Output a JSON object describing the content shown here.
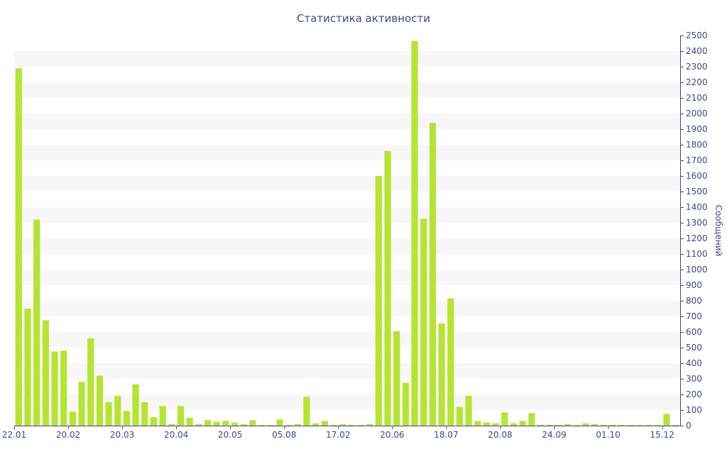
{
  "chart_data": {
    "type": "bar",
    "title": "Статистика активности",
    "ylabel": "Сообщений",
    "ylim": [
      0,
      2500
    ],
    "y_ticks": [
      0,
      100,
      200,
      300,
      400,
      500,
      600,
      700,
      800,
      900,
      1000,
      1100,
      1200,
      1300,
      1400,
      1500,
      1600,
      1700,
      1800,
      1900,
      2000,
      2100,
      2200,
      2300,
      2400,
      2500
    ],
    "y_axis_side": "right",
    "x_tick_labels": [
      {
        "label": "22.01",
        "index": 0
      },
      {
        "label": "20.02",
        "index": 6
      },
      {
        "label": "20.03",
        "index": 12
      },
      {
        "label": "20.04",
        "index": 18
      },
      {
        "label": "20.05",
        "index": 24
      },
      {
        "label": "05.08",
        "index": 30
      },
      {
        "label": "17.02",
        "index": 36
      },
      {
        "label": "20.06",
        "index": 42
      },
      {
        "label": "18.07",
        "index": 48
      },
      {
        "label": "20.08",
        "index": 54
      },
      {
        "label": "24.09",
        "index": 60
      },
      {
        "label": "01.10",
        "index": 66
      },
      {
        "label": "15.12",
        "index": 72
      }
    ],
    "values": [
      2290,
      750,
      1320,
      675,
      475,
      480,
      90,
      280,
      560,
      320,
      150,
      190,
      95,
      265,
      150,
      55,
      125,
      10,
      125,
      50,
      10,
      35,
      25,
      30,
      20,
      10,
      35,
      5,
      5,
      40,
      5,
      10,
      185,
      15,
      30,
      5,
      10,
      5,
      5,
      10,
      1600,
      1760,
      605,
      275,
      2465,
      1325,
      1940,
      655,
      815,
      120,
      190,
      30,
      20,
      15,
      85,
      15,
      30,
      80,
      5,
      5,
      5,
      10,
      5,
      15,
      10,
      5,
      5,
      5,
      5,
      5,
      5,
      5,
      75,
      5
    ],
    "grid": "alternating horizontal bands",
    "bar_color": "#b5e431",
    "text_color": "#3b4a8a"
  }
}
